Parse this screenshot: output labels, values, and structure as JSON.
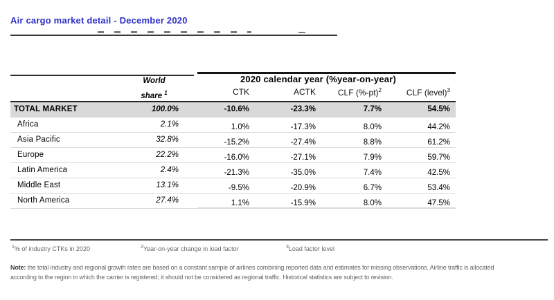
{
  "title": "Air cargo market detail - December 2020",
  "table": {
    "col_group_header": "2020 calendar year (%year-on-year)",
    "world_share_header": {
      "line1": "World",
      "line2": "share",
      "sup": "1"
    },
    "columns": [
      "CTK",
      "ACTK",
      "CLF (%-pt)",
      "CLF (level)"
    ],
    "column_sups": [
      "",
      "",
      "2",
      "3"
    ],
    "rows": [
      {
        "region": "TOTAL MARKET",
        "world_share": "100.0%",
        "ctk": "-10.6%",
        "actk": "-23.3%",
        "clf_pt": "7.7%",
        "clf_level": "54.5%",
        "is_total": true
      },
      {
        "region": "Africa",
        "world_share": "2.1%",
        "ctk": "1.0%",
        "actk": "-17.3%",
        "clf_pt": "8.0%",
        "clf_level": "44.2%",
        "is_total": false
      },
      {
        "region": "Asia Pacific",
        "world_share": "32.8%",
        "ctk": "-15.2%",
        "actk": "-27.4%",
        "clf_pt": "8.8%",
        "clf_level": "61.2%",
        "is_total": false
      },
      {
        "region": "Europe",
        "world_share": "22.2%",
        "ctk": "-16.0%",
        "actk": "-27.1%",
        "clf_pt": "7.9%",
        "clf_level": "59.7%",
        "is_total": false
      },
      {
        "region": "Latin America",
        "world_share": "2.4%",
        "ctk": "-21.3%",
        "actk": "-35.0%",
        "clf_pt": "7.4%",
        "clf_level": "42.5%",
        "is_total": false
      },
      {
        "region": "Middle East",
        "world_share": "13.1%",
        "ctk": "-9.5%",
        "actk": "-20.9%",
        "clf_pt": "6.7%",
        "clf_level": "53.4%",
        "is_total": false
      },
      {
        "region": "North America",
        "world_share": "27.4%",
        "ctk": "1.1%",
        "actk": "-15.9%",
        "clf_pt": "8.0%",
        "clf_level": "47.5%",
        "is_total": false
      }
    ]
  },
  "footnotes": [
    {
      "sup": "1",
      "text": "% of industry CTKs in 2020"
    },
    {
      "sup": "2",
      "text": "Year-on-year change in load factor"
    },
    {
      "sup": "3",
      "text": "Load factor level"
    }
  ],
  "note": {
    "label": "Note:",
    "line1": " the total industry and regional growth rates are based on a constant sample of airlines combining reported data and estimates for missing observations. Airline traffic is allocated",
    "line2": "according to the region in which the carrier is registered; it should not be considered as regional traffic. Historical statistics are subject to revision."
  },
  "colors": {
    "title_blue": "#2e2ec8",
    "total_row_bg": "#d9d9d9",
    "note_gray": "#636363"
  }
}
